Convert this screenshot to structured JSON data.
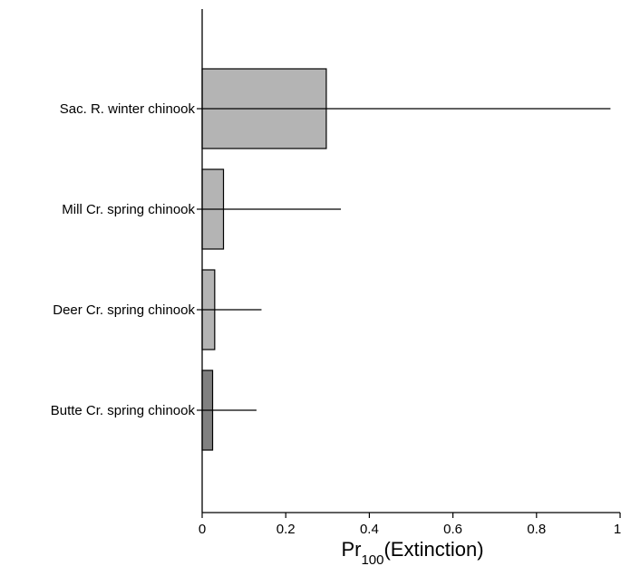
{
  "chart_data": {
    "type": "bar",
    "orientation": "horizontal",
    "categories": [
      "Sac. R. winter chinook",
      "Mill Cr. spring chinook",
      "Deer Cr. spring chinook",
      "Butte Cr. spring chinook"
    ],
    "values": [
      0.297,
      0.051,
      0.03,
      0.025
    ],
    "error_upper": [
      0.977,
      0.332,
      0.142,
      0.13
    ],
    "error_lower": [
      0,
      0,
      0,
      0
    ],
    "bar_colors": [
      "#b4b4b4",
      "#b4b4b4",
      "#b4b4b4",
      "#808080"
    ],
    "xlabel": {
      "prefix": "Pr",
      "subscript": "100",
      "suffix": "(Extinction)"
    },
    "xlim": [
      0,
      1
    ],
    "xticks": [
      "0",
      "0.2",
      "0.4",
      "0.6",
      "0.8",
      "1"
    ],
    "grid": false,
    "legend": "none"
  }
}
